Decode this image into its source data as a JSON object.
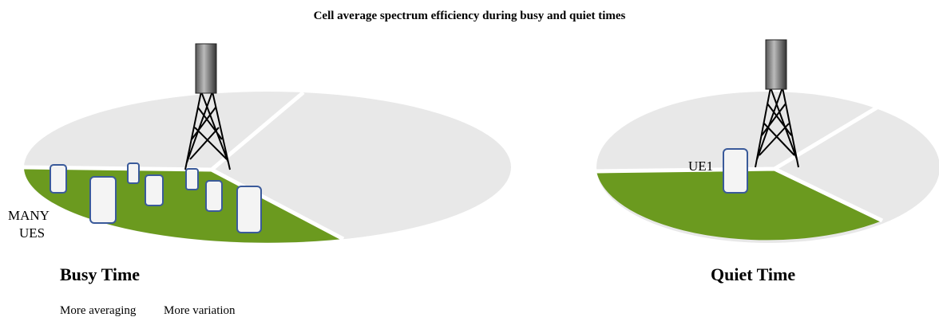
{
  "title": "Cell average spectrum efficiency during busy and quiet times",
  "panels": [
    {
      "label": [
        "MANY",
        "UES"
      ],
      "caption": "Busy Time",
      "notes": [
        "More averaging",
        "More variation"
      ]
    },
    {
      "label": [
        "UE1"
      ],
      "caption": "Quiet Time"
    }
  ]
}
